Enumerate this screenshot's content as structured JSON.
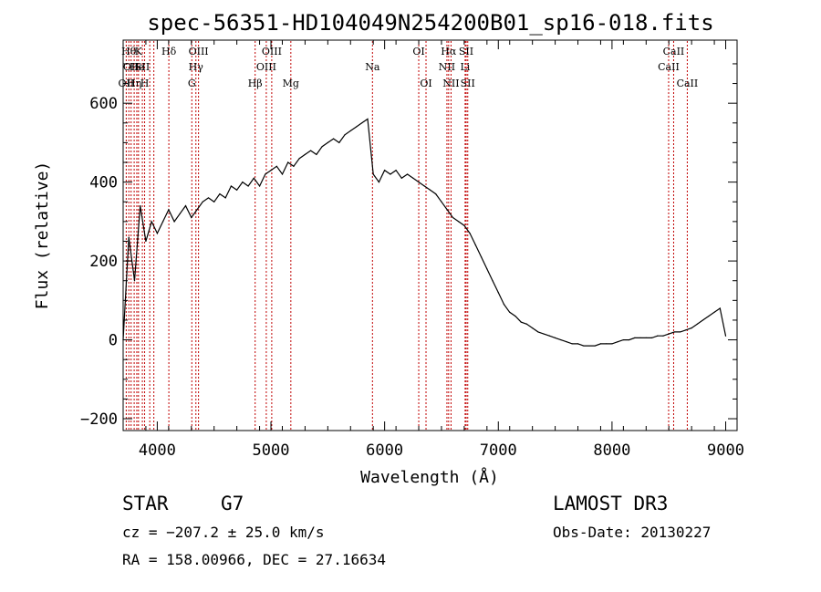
{
  "chart_data": {
    "type": "line",
    "title": "spec-56351-HD104049N254200B01_sp16-018.fits",
    "xlabel": "Wavelength (Å)",
    "ylabel": "Flux (relative)",
    "xlim": [
      3700,
      9100
    ],
    "ylim": [
      -230,
      760
    ],
    "x_ticks": [
      4000,
      5000,
      6000,
      7000,
      8000,
      9000
    ],
    "x_tick_labels": [
      "4000",
      "5000",
      "6000",
      "7000",
      "8000",
      "9000"
    ],
    "y_ticks": [
      -200,
      0,
      200,
      400,
      600
    ],
    "y_tick_labels": [
      "−200",
      "0",
      "200",
      "400",
      "600"
    ],
    "series": [
      {
        "name": "spectrum",
        "x": [
          3700,
          3750,
          3800,
          3850,
          3900,
          3950,
          4000,
          4050,
          4100,
          4150,
          4200,
          4250,
          4300,
          4350,
          4400,
          4450,
          4500,
          4550,
          4600,
          4650,
          4700,
          4750,
          4800,
          4850,
          4900,
          4950,
          5000,
          5050,
          5100,
          5150,
          5200,
          5250,
          5300,
          5350,
          5400,
          5450,
          5500,
          5550,
          5600,
          5650,
          5700,
          5750,
          5800,
          5850,
          5900,
          5950,
          6000,
          6050,
          6100,
          6150,
          6200,
          6250,
          6300,
          6350,
          6400,
          6450,
          6500,
          6550,
          6600,
          6650,
          6700,
          6750,
          6800,
          6850,
          6900,
          6950,
          7000,
          7050,
          7100,
          7150,
          7200,
          7250,
          7300,
          7350,
          7400,
          7450,
          7500,
          7550,
          7600,
          7650,
          7700,
          7750,
          7800,
          7850,
          7900,
          7950,
          8000,
          8050,
          8100,
          8150,
          8200,
          8250,
          8300,
          8350,
          8400,
          8450,
          8500,
          8550,
          8600,
          8650,
          8700,
          8750,
          8800,
          8850,
          8900,
          8950,
          9000
        ],
        "values": [
          0,
          260,
          150,
          340,
          250,
          300,
          270,
          300,
          330,
          300,
          320,
          340,
          310,
          330,
          350,
          360,
          350,
          370,
          360,
          390,
          380,
          400,
          390,
          410,
          390,
          420,
          430,
          440,
          420,
          450,
          440,
          460,
          470,
          480,
          470,
          490,
          500,
          510,
          500,
          520,
          530,
          540,
          550,
          560,
          420,
          400,
          430,
          420,
          430,
          410,
          420,
          410,
          400,
          390,
          380,
          370,
          350,
          330,
          310,
          300,
          290,
          270,
          240,
          210,
          180,
          150,
          120,
          90,
          70,
          60,
          45,
          40,
          30,
          20,
          15,
          10,
          5,
          0,
          -5,
          -10,
          -10,
          -15,
          -15,
          -15,
          -10,
          -10,
          -10,
          -5,
          0,
          0,
          5,
          5,
          5,
          5,
          10,
          10,
          15,
          20,
          20,
          25,
          30,
          40,
          50,
          60,
          70,
          80,
          10
        ]
      }
    ],
    "line_markers": [
      {
        "x": 3727,
        "label": "OII",
        "row": 2
      },
      {
        "x": 3750,
        "label": "Hθ",
        "row": 0
      },
      {
        "x": 3770,
        "label": "OII",
        "row": 1
      },
      {
        "x": 3797,
        "label": "Hη",
        "row": 2
      },
      {
        "x": 3820,
        "label": "He",
        "row": 1
      },
      {
        "x": 3835,
        "label": "K",
        "row": 0
      },
      {
        "x": 3869,
        "label": "SII",
        "row": 1
      },
      {
        "x": 3889,
        "label": "H",
        "row": 2
      },
      {
        "x": 3934,
        "label": "",
        "row": 0
      },
      {
        "x": 3970,
        "label": "",
        "row": 0
      },
      {
        "x": 4102,
        "label": "Hδ",
        "row": 0
      },
      {
        "x": 4304,
        "label": "G",
        "row": 2
      },
      {
        "x": 4340,
        "label": "Hγ",
        "row": 1
      },
      {
        "x": 4363,
        "label": "OIII",
        "row": 0
      },
      {
        "x": 4861,
        "label": "Hβ",
        "row": 2
      },
      {
        "x": 4959,
        "label": "OIII",
        "row": 1
      },
      {
        "x": 5007,
        "label": "OIII",
        "row": 0
      },
      {
        "x": 5175,
        "label": "Mg",
        "row": 2
      },
      {
        "x": 5893,
        "label": "Na",
        "row": 1
      },
      {
        "x": 6300,
        "label": "OI",
        "row": 0
      },
      {
        "x": 6364,
        "label": "OI",
        "row": 2
      },
      {
        "x": 6548,
        "label": "NII",
        "row": 1
      },
      {
        "x": 6563,
        "label": "Hα",
        "row": 0
      },
      {
        "x": 6584,
        "label": "NII",
        "row": 2
      },
      {
        "x": 6708,
        "label": "Li",
        "row": 1
      },
      {
        "x": 6717,
        "label": "SII",
        "row": 0
      },
      {
        "x": 6731,
        "label": "SII",
        "row": 2
      },
      {
        "x": 8498,
        "label": "CaII",
        "row": 1
      },
      {
        "x": 8542,
        "label": "CaII",
        "row": 0
      },
      {
        "x": 8662,
        "label": "CaII",
        "row": 2
      }
    ]
  },
  "info": {
    "object_type": "STAR",
    "subclass": "G7",
    "survey": "LAMOST DR3",
    "redshift": "cz = −207.2 ± 25.0 km/s",
    "obs_date": "Obs-Date: 20130227",
    "coords": "RA = 158.00966, DEC =  27.16634"
  },
  "colors": {
    "line": "#000000",
    "markers": "#c00000"
  }
}
